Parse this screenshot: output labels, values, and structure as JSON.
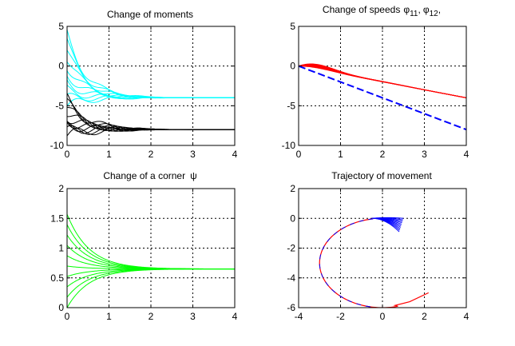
{
  "colors": {
    "cyan": "#00ffff",
    "black": "#000000",
    "red": "#ff0000",
    "blue": "#0000ff",
    "green": "#00ff00"
  },
  "chart_data": [
    {
      "type": "line",
      "title": "Change of moments",
      "xlim": [
        0,
        4
      ],
      "ylim": [
        -10,
        5
      ],
      "xticks": [
        0,
        1,
        2,
        3,
        4
      ],
      "yticks": [
        -10,
        -5,
        0,
        5
      ],
      "grid": true,
      "series": [
        {
          "color": "cyan",
          "kind": "family",
          "count": 10,
          "start_min": -5,
          "start_max": 4,
          "final": -4,
          "decay": 2.2,
          "wiggle": 0.6,
          "settle": 2.8
        },
        {
          "color": "black",
          "kind": "family",
          "count": 10,
          "start_min": -8.8,
          "start_max": -4.2,
          "final": -8,
          "decay": 2.2,
          "wiggle": 0.8,
          "settle": 2.8
        }
      ]
    },
    {
      "type": "line",
      "title": "Change of speeds",
      "title_phi": "φ",
      "title_sub1": "11",
      "title_sub2": "12",
      "title_sep": ",",
      "xlim": [
        0,
        4
      ],
      "ylim": [
        -10,
        5
      ],
      "xticks": [
        0,
        1,
        2,
        3,
        4
      ],
      "yticks": [
        -10,
        -5,
        0,
        5
      ],
      "grid": true,
      "series": [
        {
          "color": "red",
          "kind": "speed",
          "count": 10,
          "final_slope": -1.0,
          "bump_max": 0.7
        },
        {
          "color": "blue",
          "kind": "line",
          "dashed": true,
          "x": [
            0,
            4
          ],
          "y": [
            0,
            -8
          ]
        }
      ]
    },
    {
      "type": "line",
      "title": "Change of a corner",
      "title_symbol": "ψ",
      "xlim": [
        0,
        4
      ],
      "ylim": [
        0,
        2
      ],
      "xticks": [
        0,
        1,
        2,
        3,
        4
      ],
      "yticks": [
        0,
        0.5,
        1,
        1.5,
        2
      ],
      "grid": true,
      "series": [
        {
          "color": "green",
          "kind": "family",
          "count": 10,
          "start_min": 0,
          "start_max": 1.57,
          "final": 0.65,
          "decay": 1.9,
          "wiggle": 0,
          "settle": 2.6
        }
      ]
    },
    {
      "type": "line",
      "title": "Trajectory of movement",
      "xlim": [
        -4,
        4
      ],
      "ylim": [
        -6,
        2
      ],
      "xticks": [
        -4,
        -2,
        0,
        2,
        4
      ],
      "yticks": [
        -6,
        -4,
        -2,
        0,
        2
      ],
      "grid": true,
      "series": [
        {
          "color": "blue",
          "kind": "fan",
          "count": 10,
          "x_end_min": 0.8,
          "x_end_max": 1.0,
          "y_end_min": -0.9,
          "y_end_max": 0
        },
        {
          "color": "red",
          "kind": "arc",
          "center": [
            0,
            -3
          ],
          "radius": 3,
          "x_end": 2.2,
          "y_end": -5
        }
      ]
    }
  ]
}
